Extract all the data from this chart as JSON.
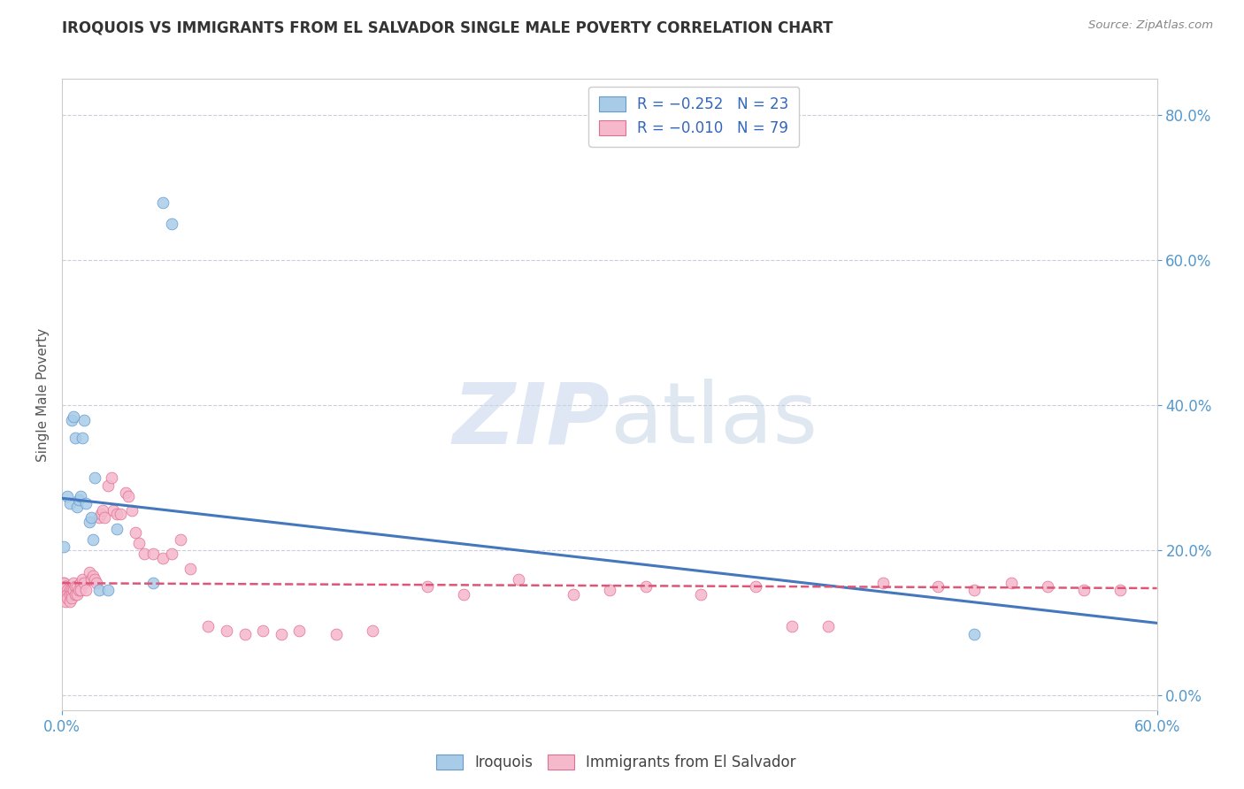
{
  "title": "IROQUOIS VS IMMIGRANTS FROM EL SALVADOR SINGLE MALE POVERTY CORRELATION CHART",
  "source": "Source: ZipAtlas.com",
  "ylabel": "Single Male Poverty",
  "watermark_zip": "ZIP",
  "watermark_atlas": "atlas",
  "iroquois_color": "#a8cce8",
  "iroquois_edge": "#6699cc",
  "elsalvador_color": "#f5b8cc",
  "elsalvador_edge": "#e07090",
  "trendline_iroquois_color": "#4477bb",
  "trendline_elsalvador_color": "#dd5577",
  "iroquois_x": [
    0.001,
    0.003,
    0.004,
    0.005,
    0.006,
    0.007,
    0.008,
    0.009,
    0.01,
    0.011,
    0.012,
    0.013,
    0.015,
    0.016,
    0.017,
    0.018,
    0.02,
    0.025,
    0.03,
    0.05,
    0.055,
    0.06,
    0.5
  ],
  "iroquois_y": [
    0.205,
    0.275,
    0.265,
    0.38,
    0.385,
    0.355,
    0.26,
    0.27,
    0.275,
    0.355,
    0.38,
    0.265,
    0.24,
    0.245,
    0.215,
    0.3,
    0.145,
    0.145,
    0.23,
    0.155,
    0.68,
    0.65,
    0.085
  ],
  "elsalvador_x": [
    0.001,
    0.001,
    0.001,
    0.001,
    0.002,
    0.002,
    0.002,
    0.002,
    0.003,
    0.003,
    0.003,
    0.004,
    0.004,
    0.004,
    0.005,
    0.005,
    0.005,
    0.006,
    0.006,
    0.007,
    0.007,
    0.008,
    0.008,
    0.009,
    0.01,
    0.01,
    0.011,
    0.012,
    0.013,
    0.015,
    0.016,
    0.017,
    0.018,
    0.019,
    0.02,
    0.021,
    0.022,
    0.023,
    0.025,
    0.027,
    0.028,
    0.03,
    0.032,
    0.035,
    0.036,
    0.038,
    0.04,
    0.042,
    0.045,
    0.05,
    0.055,
    0.06,
    0.065,
    0.07,
    0.08,
    0.09,
    0.1,
    0.11,
    0.12,
    0.13,
    0.15,
    0.17,
    0.2,
    0.22,
    0.25,
    0.28,
    0.3,
    0.32,
    0.35,
    0.38,
    0.4,
    0.42,
    0.45,
    0.48,
    0.5,
    0.52,
    0.54,
    0.56,
    0.58
  ],
  "elsalvador_y": [
    0.155,
    0.155,
    0.145,
    0.135,
    0.15,
    0.15,
    0.14,
    0.13,
    0.145,
    0.14,
    0.135,
    0.145,
    0.14,
    0.13,
    0.145,
    0.14,
    0.135,
    0.155,
    0.145,
    0.15,
    0.14,
    0.15,
    0.14,
    0.145,
    0.155,
    0.145,
    0.16,
    0.155,
    0.145,
    0.17,
    0.16,
    0.165,
    0.16,
    0.155,
    0.245,
    0.25,
    0.255,
    0.245,
    0.29,
    0.3,
    0.255,
    0.25,
    0.25,
    0.28,
    0.275,
    0.255,
    0.225,
    0.21,
    0.195,
    0.195,
    0.19,
    0.195,
    0.215,
    0.175,
    0.095,
    0.09,
    0.085,
    0.09,
    0.085,
    0.09,
    0.085,
    0.09,
    0.15,
    0.14,
    0.16,
    0.14,
    0.145,
    0.15,
    0.14,
    0.15,
    0.095,
    0.095,
    0.155,
    0.15,
    0.145,
    0.155,
    0.15,
    0.145,
    0.145
  ],
  "iq_trend_x0": 0.0,
  "iq_trend_y0": 0.272,
  "iq_trend_x1": 0.6,
  "iq_trend_y1": 0.1,
  "es_trend_x0": 0.0,
  "es_trend_y0": 0.155,
  "es_trend_x1": 0.6,
  "es_trend_y1": 0.148,
  "xlim": [
    0.0,
    0.6
  ],
  "ylim": [
    -0.02,
    0.85
  ],
  "yticks": [
    0.0,
    0.2,
    0.4,
    0.6,
    0.8
  ],
  "xticks": [
    0.0,
    0.6
  ],
  "background_color": "#ffffff",
  "grid_color": "#ccccdd",
  "tick_color": "#5599cc",
  "title_color": "#333333",
  "source_color": "#888888",
  "legend_text_color": "#3366bb"
}
